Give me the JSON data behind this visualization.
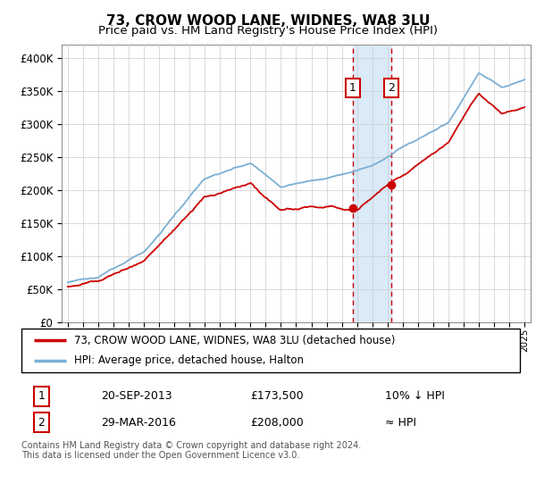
{
  "title": "73, CROW WOOD LANE, WIDNES, WA8 3LU",
  "subtitle": "Price paid vs. HM Land Registry's House Price Index (HPI)",
  "legend_line1": "73, CROW WOOD LANE, WIDNES, WA8 3LU (detached house)",
  "legend_line2": "HPI: Average price, detached house, Halton",
  "transaction1_date": "20-SEP-2013",
  "transaction1_price": "£173,500",
  "transaction1_hpi": "10% ↓ HPI",
  "transaction2_date": "29-MAR-2016",
  "transaction2_price": "£208,000",
  "transaction2_hpi": "≈ HPI",
  "footnote": "Contains HM Land Registry data © Crown copyright and database right 2024.\nThis data is licensed under the Open Government Licence v3.0.",
  "red_color": "#cc0000",
  "blue_color": "#7bafd4",
  "highlight_color": "#daeaf7",
  "box_color": "#cc0000",
  "ylim": [
    0,
    420000
  ],
  "yticks": [
    0,
    50000,
    100000,
    150000,
    200000,
    250000,
    300000,
    350000,
    400000
  ],
  "transaction1_x": 2013.72,
  "transaction2_x": 2016.24,
  "xmin": 1994.6,
  "xmax": 2025.4
}
